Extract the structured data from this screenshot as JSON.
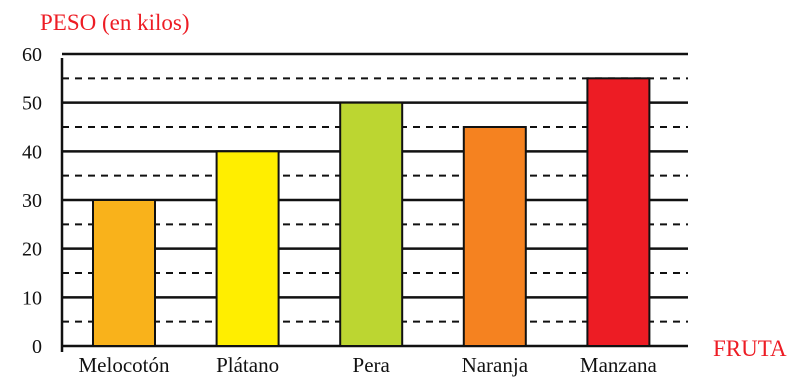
{
  "chart_data": {
    "type": "bar",
    "ylabel": "PESO (en kilos)",
    "xlabel": "FRUTA",
    "categories": [
      "Melocotón",
      "Plátano",
      "Pera",
      "Naranja",
      "Manzana"
    ],
    "values": [
      30,
      40,
      50,
      45,
      55
    ],
    "bar_colors": [
      "#F9B21B",
      "#FFEE00",
      "#BCD631",
      "#F58220",
      "#ED1C24"
    ],
    "ylim": [
      0,
      60
    ],
    "yticks": [
      0,
      10,
      20,
      30,
      40,
      50,
      60
    ],
    "major_grid_step": 10,
    "minor_grid_step": 5,
    "grid": true,
    "label_color": "#ED1C24"
  }
}
